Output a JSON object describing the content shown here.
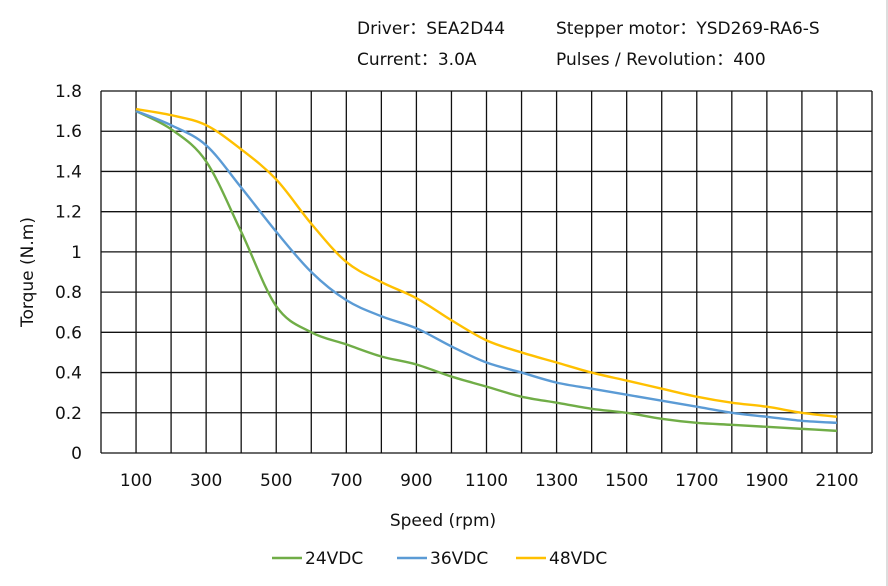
{
  "header": {
    "driver": "Driver：SEA2D44",
    "motor": "Stepper motor：YSD269-RA6-S",
    "current": "Current：3.0A",
    "pulses": "Pulses / Revolution：400"
  },
  "chart_data": {
    "type": "line",
    "xlabel": "Speed  (rpm)",
    "ylabel": "Torque (N.m)",
    "xlim": [
      0,
      2200
    ],
    "ylim": [
      0,
      1.8
    ],
    "grid": true,
    "legend_position": "bottom",
    "x_ticks": [
      "100",
      "300",
      "500",
      "700",
      "900",
      "1100",
      "1300",
      "1500",
      "1700",
      "1900",
      "2100"
    ],
    "y_ticks": [
      "0",
      "0.2",
      "0.4",
      "0.6",
      "0.8",
      "1",
      "1.2",
      "1.4",
      "1.6",
      "1.8"
    ],
    "x": [
      100,
      200,
      300,
      400,
      500,
      600,
      700,
      800,
      900,
      1000,
      1100,
      1200,
      1300,
      1400,
      1500,
      1600,
      1700,
      1800,
      1900,
      2000,
      2100
    ],
    "series": [
      {
        "name": "24VDC",
        "color": "#70ad47",
        "values": [
          1.7,
          1.61,
          1.45,
          1.1,
          0.73,
          0.6,
          0.54,
          0.48,
          0.44,
          0.38,
          0.33,
          0.28,
          0.25,
          0.22,
          0.2,
          0.17,
          0.15,
          0.14,
          0.13,
          0.12,
          0.11
        ]
      },
      {
        "name": "36VDC",
        "color": "#5b9bd5",
        "values": [
          1.7,
          1.63,
          1.53,
          1.32,
          1.1,
          0.9,
          0.76,
          0.68,
          0.62,
          0.53,
          0.45,
          0.4,
          0.35,
          0.32,
          0.29,
          0.26,
          0.23,
          0.2,
          0.18,
          0.16,
          0.15
        ]
      },
      {
        "name": "48VDC",
        "color": "#ffc000",
        "values": [
          1.71,
          1.68,
          1.63,
          1.51,
          1.36,
          1.14,
          0.95,
          0.85,
          0.77,
          0.66,
          0.56,
          0.5,
          0.45,
          0.4,
          0.36,
          0.32,
          0.28,
          0.25,
          0.23,
          0.2,
          0.18
        ]
      }
    ]
  }
}
